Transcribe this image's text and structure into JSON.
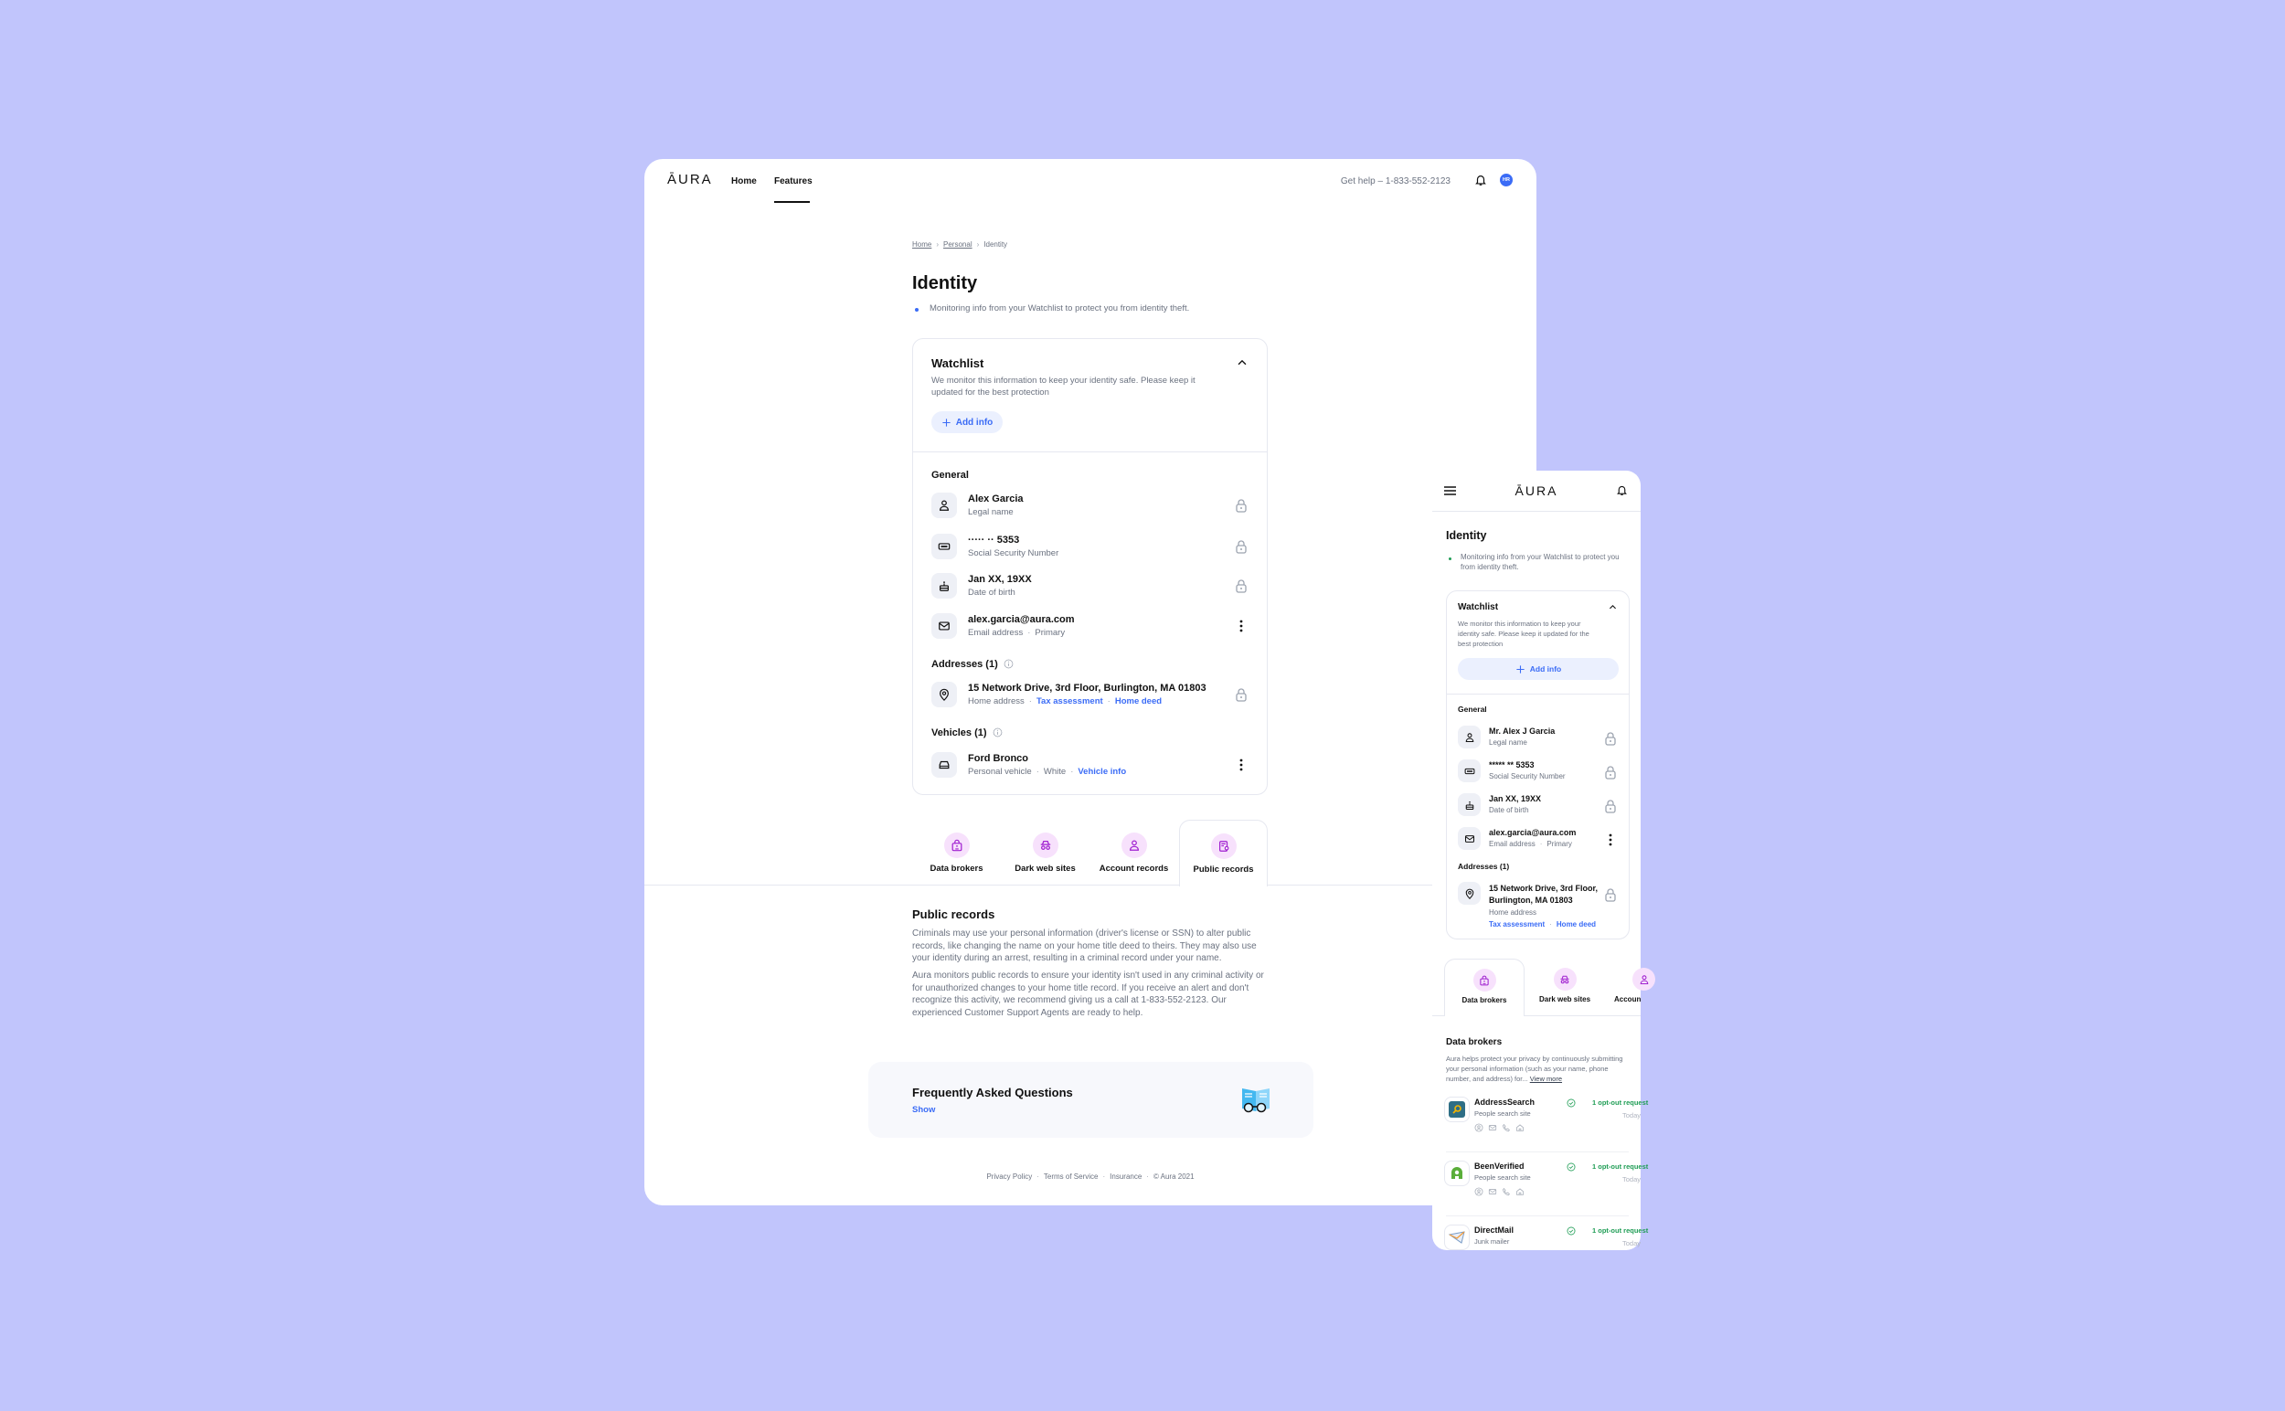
{
  "colors": {
    "background": "#c1c5fc",
    "accent": "#3b6cf6",
    "tab_icon": "#a020d0",
    "success": "#1f9d55"
  },
  "nav": {
    "logo": "ĀURA",
    "home": "Home",
    "features": "Features",
    "help": "Get help – 1-833-552-2123",
    "avatar": "HR"
  },
  "breadcrumb": [
    "Home",
    "Personal",
    "Identity"
  ],
  "page": {
    "title": "Identity",
    "bullet": "Monitoring info from your Watchlist to protect you from identity theft."
  },
  "watchlist": {
    "title": "Watchlist",
    "desc": "We monitor this information to keep your identity safe. Please keep it updated for the best protection",
    "add": "Add info",
    "general": "General",
    "rows": [
      {
        "title": "Alex Garcia",
        "sub": "Legal name",
        "icon": "person-icon",
        "action": "lock-icon"
      },
      {
        "title": "····· ·· 5353",
        "sub": "Social Security Number",
        "icon": "ssn-card-icon",
        "action": "lock-icon"
      },
      {
        "title": "Jan XX, 19XX",
        "sub": "Date of birth",
        "icon": "cake-icon",
        "action": "lock-icon"
      },
      {
        "title": "alex.garcia@aura.com",
        "sub": "Email address",
        "sub2": "Primary",
        "icon": "mail-icon",
        "action": "more-icon"
      }
    ],
    "addresses": "Addresses (1)",
    "address": {
      "title": "15 Network Drive, 3rd Floor, Burlington, MA 01803",
      "sub": "Home address",
      "link1": "Tax assessment",
      "link2": "Home deed"
    },
    "vehicles": "Vehicles (1)",
    "vehicle": {
      "title": "Ford Bronco",
      "sub": "Personal vehicle",
      "sub2": "White",
      "link": "Vehicle info"
    }
  },
  "tabs": [
    {
      "label": "Data brokers",
      "icon": "lock-id-icon"
    },
    {
      "label": "Dark web sites",
      "icon": "spy-icon"
    },
    {
      "label": "Account records",
      "icon": "person-icon"
    },
    {
      "label": "Public records",
      "icon": "document-icon",
      "active": true
    }
  ],
  "public_records": {
    "title": "Public records",
    "p1": "Criminals may use your personal information (driver's license or SSN) to alter public records, like changing the name on your home title deed to theirs. They may also use your identity during an arrest, resulting in a criminal record under your name.",
    "p2": "Aura monitors public records to ensure your identity isn't used in any criminal activity or for unauthorized changes to your home title record. If you receive an alert and don't recognize this activity, we recommend giving us a call at 1-833-552-2123. Our experienced Customer Support Agents are ready to help."
  },
  "faq": {
    "title": "Frequently Asked Questions",
    "show": "Show"
  },
  "footer": [
    "Privacy Policy",
    "Terms of Service",
    "Insurance",
    "© Aura 2021"
  ],
  "mobile": {
    "logo": "ĀURA",
    "title": "Identity",
    "bullet": "Monitoring info from your Watchlist to protect you from identity theft.",
    "watchlist_title": "Watchlist",
    "watchlist_desc": "We monitor this information to keep your identity safe. Please keep it updated for the best protection",
    "add": "Add info",
    "general": "General",
    "rows": [
      {
        "title": "Mr. Alex J Garcia",
        "sub": "Legal name"
      },
      {
        "title": "***** ** 5353",
        "sub": "Social Security Number"
      },
      {
        "title": "Jan XX, 19XX",
        "sub": "Date of birth"
      },
      {
        "title": "alex.garcia@aura.com",
        "sub": "Email address",
        "sub2": "Primary"
      }
    ],
    "addresses": "Addresses (1)",
    "address": {
      "line1": "15 Network Drive, 3rd Floor,",
      "line2": "Burlington, MA 01803",
      "sub": "Home address",
      "link1": "Tax assessment",
      "link2": "Home deed"
    },
    "tabs": [
      "Data brokers",
      "Dark web sites",
      "Accoun"
    ],
    "section_title": "Data brokers",
    "section_desc": "Aura helps protect your privacy by continuously submitting your personal information (such as your name, phone number, and address) for...",
    "view_more": "View more",
    "brokers": [
      {
        "name": "AddressSearch",
        "type": "People search site",
        "status": "1 opt-out request",
        "date": "Today"
      },
      {
        "name": "BeenVerified",
        "type": "People search site",
        "status": "1 opt-out request",
        "date": "Today"
      },
      {
        "name": "DirectMail",
        "type": "Junk mailer",
        "status": "1 opt-out request",
        "date": "Today"
      }
    ]
  }
}
